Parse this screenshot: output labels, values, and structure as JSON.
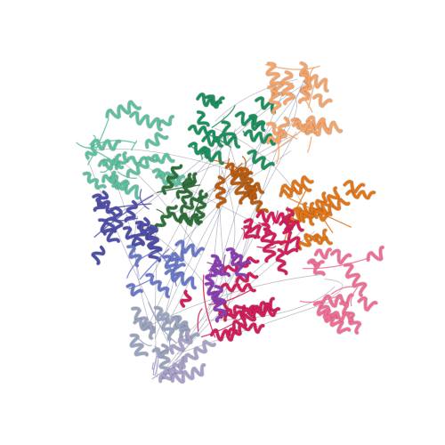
{
  "image": {
    "subject": "protein-complex-cartoon",
    "background": "#ffffff",
    "palette": {
      "teal": "#5fbf9f",
      "green": "#1f8f5f",
      "dark_green": "#2e6f3a",
      "peach": "#f2a46a",
      "orange": "#e0761a",
      "dark_orange": "#b85c12",
      "indigo": "#4f4fa8",
      "slate_blue": "#6a78c8",
      "magenta": "#d11f5a",
      "pink": "#ef6f94",
      "purple": "#8a3fb0",
      "gray_blue": "#9aa3bd",
      "gray_purple": "#a9a0c8",
      "linker": "#8b8ba0"
    },
    "subunits": [
      {
        "name": "subunit-teal",
        "color": "teal"
      },
      {
        "name": "subunit-green",
        "color": "green"
      },
      {
        "name": "subunit-dark-green",
        "color": "dark_green"
      },
      {
        "name": "subunit-peach",
        "color": "peach"
      },
      {
        "name": "subunit-orange",
        "color": "orange"
      },
      {
        "name": "subunit-dark-orange",
        "color": "dark_orange"
      },
      {
        "name": "subunit-indigo",
        "color": "indigo"
      },
      {
        "name": "subunit-slate-blue",
        "color": "slate_blue"
      },
      {
        "name": "subunit-magenta",
        "color": "magenta"
      },
      {
        "name": "subunit-pink",
        "color": "pink"
      },
      {
        "name": "subunit-purple",
        "color": "purple"
      },
      {
        "name": "subunit-gray-blue",
        "color": "gray_blue"
      },
      {
        "name": "subunit-gray-purple",
        "color": "gray_purple"
      }
    ]
  }
}
